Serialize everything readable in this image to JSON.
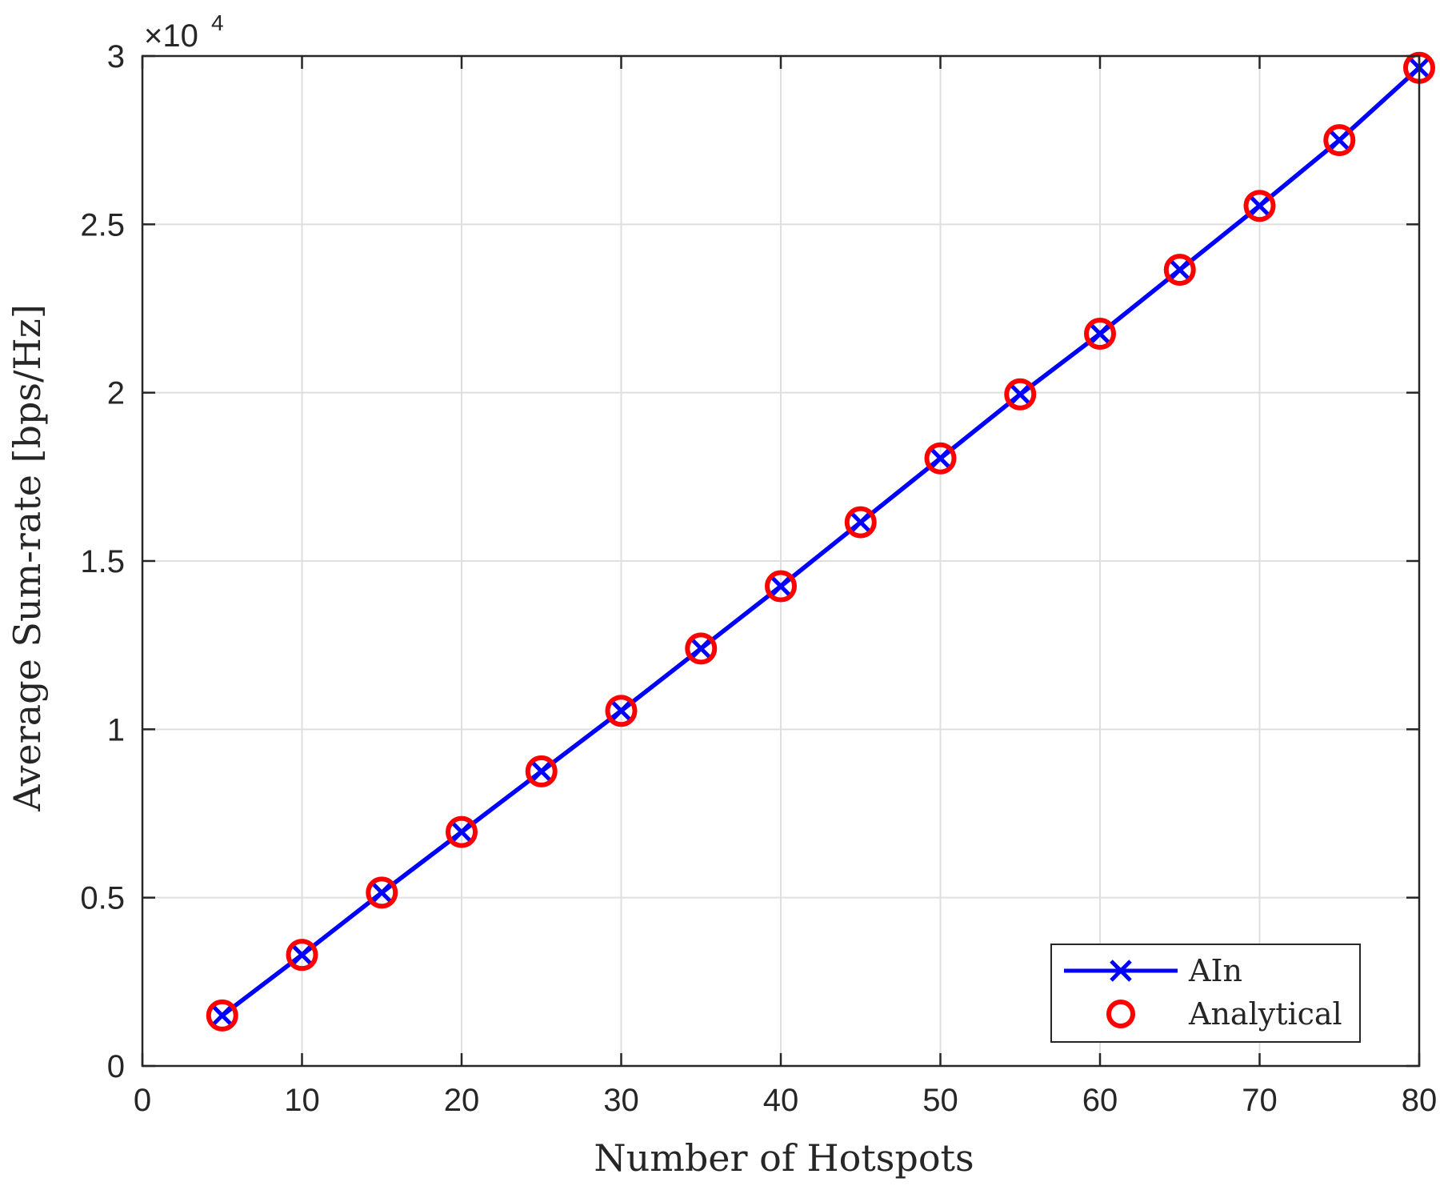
{
  "chart_data": {
    "type": "line",
    "xlabel": "Number of Hotspots",
    "ylabel": "Average Sum-rate [bps/Hz]",
    "xlim": [
      0,
      80
    ],
    "ylim": [
      0,
      30000
    ],
    "x_ticks": [
      0,
      10,
      20,
      30,
      40,
      50,
      60,
      70,
      80
    ],
    "y_ticks": [
      0,
      5000,
      10000,
      15000,
      20000,
      25000,
      30000
    ],
    "y_tick_labels": [
      "0",
      "0.5",
      "1",
      "1.5",
      "2",
      "2.5",
      "3"
    ],
    "y_exponent": {
      "base": "×10",
      "power": "4"
    },
    "grid": true,
    "legend_position": "bottom-right",
    "x": [
      5,
      10,
      15,
      20,
      25,
      30,
      35,
      40,
      45,
      50,
      55,
      60,
      65,
      70,
      75,
      80
    ],
    "series": [
      {
        "name": "AIn",
        "style": "line-x-marker",
        "color": "#0000ff",
        "values": [
          1500,
          3300,
          5150,
          6950,
          8750,
          10550,
          12400,
          14250,
          16150,
          18050,
          19950,
          21750,
          23650,
          25550,
          27500,
          29650
        ]
      },
      {
        "name": "Analytical",
        "style": "circle-marker",
        "color": "#ff0000",
        "values": [
          1500,
          3300,
          5150,
          6950,
          8750,
          10550,
          12400,
          14250,
          16150,
          18050,
          19950,
          21750,
          23650,
          25550,
          27500,
          29650
        ]
      }
    ]
  }
}
